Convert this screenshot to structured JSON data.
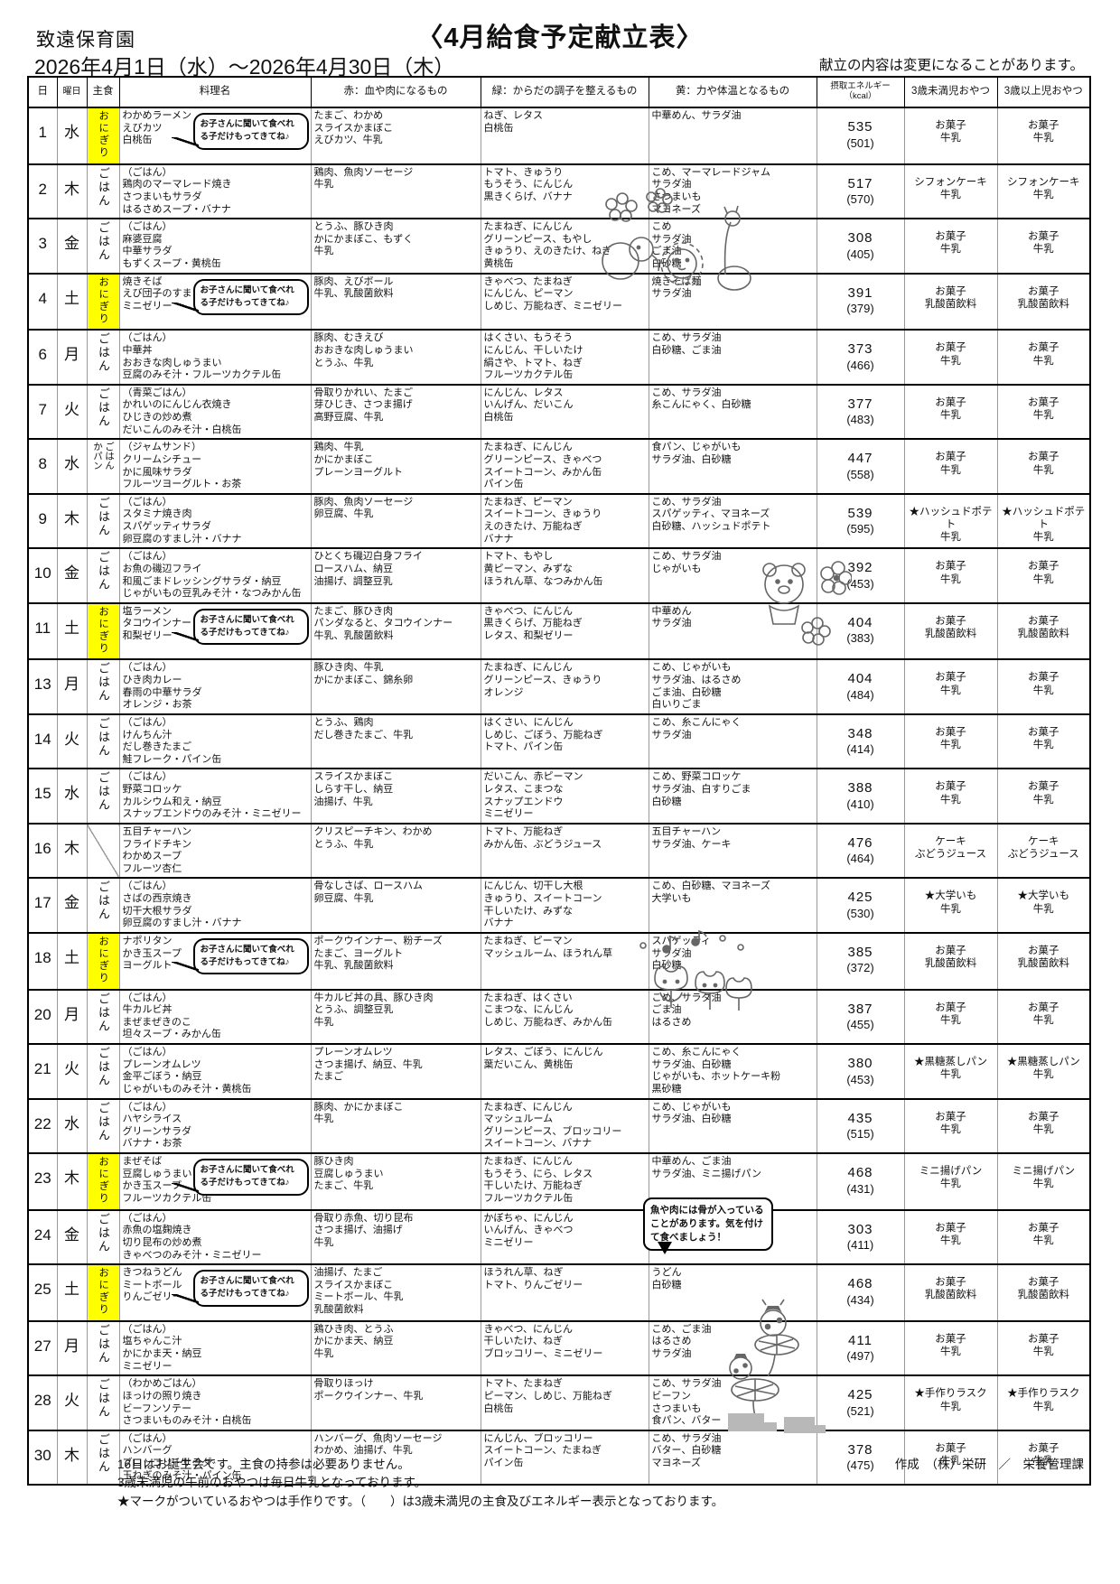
{
  "page": {
    "school": "致遠保育園",
    "title": "〈4月給食予定献立表〉",
    "date_range": "2026年4月1日（水）～2026年4月30日（木）",
    "change_note": "献立の内容は変更になることがあります。"
  },
  "colors": {
    "onigiri_highlight": "#ffff00"
  },
  "bubbles": {
    "bring_note": "お子さんに聞いて食べれる子だけもってきてね♪",
    "bone_note": "魚や肉には骨が入っていることがあります。気を付けて食べましょう！"
  },
  "table": {
    "columns": [
      {
        "key": "day",
        "label": "日"
      },
      {
        "key": "wd",
        "label": "曜日"
      },
      {
        "key": "staple",
        "label": "主食"
      },
      {
        "key": "menu",
        "label": "料理名"
      },
      {
        "key": "red",
        "label": "赤：血や肉になるもの"
      },
      {
        "key": "green",
        "label": "緑：からだの調子を整えるもの"
      },
      {
        "key": "yellow",
        "label": "黄：力や体温となるもの"
      },
      {
        "key": "kcal",
        "label": "摂取エネルギー（kcal）"
      },
      {
        "key": "s1",
        "label": "3歳未満児おやつ"
      },
      {
        "key": "s2",
        "label": "3歳以上児おやつ"
      }
    ],
    "rows": [
      {
        "day": 1,
        "weekday": "水",
        "staple": [
          "おにぎり"
        ],
        "staple_type": "onigiri",
        "bubble": true,
        "menu": [
          "わかめラーメン",
          "えびカツ",
          "白桃缶"
        ],
        "red": [
          "たまご、わかめ",
          "スライスかまぼこ",
          "えびカツ、牛乳"
        ],
        "green": [
          "ねぎ、レタス",
          "白桃缶"
        ],
        "yellow": [
          "中華めん、サラダ油"
        ],
        "kcal": "535",
        "kcal_sub": "(501)",
        "snack_u3": [
          "お菓子",
          "牛乳"
        ],
        "snack_o3": [
          "お菓子",
          "牛乳"
        ]
      },
      {
        "day": 2,
        "weekday": "木",
        "staple": [
          "ごはん"
        ],
        "staple_type": "gohan",
        "bubble": false,
        "menu": [
          "（ごはん）",
          "鶏肉のマーマレード焼き",
          "さつまいもサラダ",
          "はるさめスープ・バナナ"
        ],
        "red": [
          "鶏肉、魚肉ソーセージ",
          "牛乳"
        ],
        "green": [
          "トマト、きゅうり",
          "もうそう、にんじん",
          "黒きくらげ、バナナ"
        ],
        "yellow": [
          "こめ、マーマレードジャム",
          "サラダ油",
          "さつまいも",
          "マヨネーズ"
        ],
        "kcal": "517",
        "kcal_sub": "(570)",
        "snack_u3": [
          "シフォンケーキ",
          "牛乳"
        ],
        "snack_o3": [
          "シフォンケーキ",
          "牛乳"
        ]
      },
      {
        "day": 3,
        "weekday": "金",
        "staple": [
          "ごはん"
        ],
        "staple_type": "gohan",
        "bubble": false,
        "menu": [
          "（ごはん）",
          "麻婆豆腐",
          "中華サラダ",
          "もずくスープ・黄桃缶"
        ],
        "red": [
          "とうふ、豚ひき肉",
          "かにかまぼこ、もずく",
          "牛乳"
        ],
        "green": [
          "たまねぎ、にんじん",
          "グリーンピース、もやし",
          "きゅうり、えのきたけ、ねぎ",
          "黄桃缶"
        ],
        "yellow": [
          "こめ",
          "サラダ油",
          "ごま油",
          "白砂糖"
        ],
        "kcal": "308",
        "kcal_sub": "(405)",
        "snack_u3": [
          "お菓子",
          "牛乳"
        ],
        "snack_o3": [
          "お菓子",
          "牛乳"
        ]
      },
      {
        "day": 4,
        "weekday": "土",
        "staple": [
          "おにぎり"
        ],
        "staple_type": "onigiri",
        "bubble": true,
        "menu": [
          "焼きそば",
          "えび団子のすまし汁",
          "ミニゼリー"
        ],
        "red": [
          "豚肉、えびボール",
          "牛乳、乳酸菌飲料"
        ],
        "green": [
          "きゃべつ、たまねぎ",
          "にんじん、ピーマン",
          "しめじ、万能ねぎ、ミニゼリー"
        ],
        "yellow": [
          "焼きそば麺",
          "サラダ油"
        ],
        "kcal": "391",
        "kcal_sub": "(379)",
        "snack_u3": [
          "お菓子",
          "乳酸菌飲料"
        ],
        "snack_o3": [
          "お菓子",
          "乳酸菌飲料"
        ]
      },
      {
        "day": 6,
        "weekday": "月",
        "staple": [
          "ごはん"
        ],
        "staple_type": "gohan",
        "bubble": false,
        "menu": [
          "（ごはん）",
          "中華丼",
          "おおきな肉しゅうまい",
          "豆腐のみそ汁・フルーツカクテル缶"
        ],
        "red": [
          "豚肉、むきえび",
          "おおきな肉しゅうまい",
          "とうふ、牛乳"
        ],
        "green": [
          "はくさい、もうそう",
          "にんじん、干しいたけ",
          "絹さや、トマト、ねぎ",
          "フルーツカクテル缶"
        ],
        "yellow": [
          "こめ、サラダ油",
          "白砂糖、ごま油"
        ],
        "kcal": "373",
        "kcal_sub": "(466)",
        "snack_u3": [
          "お菓子",
          "牛乳"
        ],
        "snack_o3": [
          "お菓子",
          "牛乳"
        ]
      },
      {
        "day": 7,
        "weekday": "火",
        "staple": [
          "ごはん"
        ],
        "staple_type": "gohan",
        "bubble": false,
        "menu": [
          "（青菜ごはん）",
          "かれいのにんじん衣焼き",
          "ひじきの炒め煮",
          "だいこんのみそ汁・白桃缶"
        ],
        "red": [
          "骨取りかれい、たまご",
          "芽ひじき、さつま揚げ",
          "高野豆腐、牛乳"
        ],
        "green": [
          "にんじん、レタス",
          "いんげん、だいこん",
          "白桃缶"
        ],
        "yellow": [
          "こめ、サラダ油",
          "糸こんにゃく、白砂糖"
        ],
        "kcal": "377",
        "kcal_sub": "(483)",
        "snack_u3": [
          "お菓子",
          "牛乳"
        ],
        "snack_o3": [
          "お菓子",
          "牛乳"
        ]
      },
      {
        "day": 8,
        "weekday": "水",
        "staple": [
          "ごはん",
          "かパン"
        ],
        "staple_type": "gohan_pan",
        "bubble": false,
        "menu": [
          "（ジャムサンド）",
          "クリームシチュー",
          "かに風味サラダ",
          "フルーツヨーグルト・お茶"
        ],
        "red": [
          "鶏肉、牛乳",
          "かにかまぼこ",
          "プレーンヨーグルト"
        ],
        "green": [
          "たまねぎ、にんじん",
          "グリーンピース、きゃべつ",
          "スイートコーン、みかん缶",
          "パイン缶"
        ],
        "yellow": [
          "食パン、じゃがいも",
          "サラダ油、白砂糖"
        ],
        "kcal": "447",
        "kcal_sub": "(558)",
        "snack_u3": [
          "お菓子",
          "牛乳"
        ],
        "snack_o3": [
          "お菓子",
          "牛乳"
        ]
      },
      {
        "day": 9,
        "weekday": "木",
        "staple": [
          "ごはん"
        ],
        "staple_type": "gohan",
        "bubble": false,
        "menu": [
          "（ごはん）",
          "スタミナ焼き肉",
          "スパゲッティサラダ",
          "卵豆腐のすまし汁・バナナ"
        ],
        "red": [
          "豚肉、魚肉ソーセージ",
          "卵豆腐、牛乳"
        ],
        "green": [
          "たまねぎ、ピーマン",
          "スイートコーン、きゅうり",
          "えのきたけ、万能ねぎ",
          "バナナ"
        ],
        "yellow": [
          "こめ、サラダ油",
          "スパゲッティ、マヨネーズ",
          "白砂糖、ハッシュドポテト"
        ],
        "kcal": "539",
        "kcal_sub": "(595)",
        "snack_u3": [
          "★ハッシュドポテト",
          "牛乳"
        ],
        "snack_o3": [
          "★ハッシュドポテト",
          "牛乳"
        ]
      },
      {
        "day": 10,
        "weekday": "金",
        "staple": [
          "ごはん"
        ],
        "staple_type": "gohan",
        "bubble": false,
        "menu": [
          "（ごはん）",
          "お魚の磯辺フライ",
          "和風ごまドレッシングサラダ・納豆",
          "じゃがいもの豆乳みそ汁・なつみかん缶"
        ],
        "red": [
          "ひとくち磯辺白身フライ",
          "ロースハム、納豆",
          "油揚げ、調整豆乳"
        ],
        "green": [
          "トマト、もやし",
          "黄ピーマン、みずな",
          "ほうれん草、なつみかん缶"
        ],
        "yellow": [
          "こめ、サラダ油",
          "じゃがいも"
        ],
        "kcal": "392",
        "kcal_sub": "(453)",
        "snack_u3": [
          "お菓子",
          "牛乳"
        ],
        "snack_o3": [
          "お菓子",
          "牛乳"
        ]
      },
      {
        "day": 11,
        "weekday": "土",
        "staple": [
          "おにぎり"
        ],
        "staple_type": "onigiri",
        "bubble": true,
        "menu": [
          "塩ラーメン",
          "タコウインナー",
          "和梨ゼリー"
        ],
        "red": [
          "たまご、豚ひき肉",
          "パンダなると、タコウインナー",
          "牛乳、乳酸菌飲料"
        ],
        "green": [
          "きゃべつ、にんじん",
          "黒きくらげ、万能ねぎ",
          "レタス、和梨ゼリー"
        ],
        "yellow": [
          "中華めん",
          "サラダ油"
        ],
        "kcal": "404",
        "kcal_sub": "(383)",
        "snack_u3": [
          "お菓子",
          "乳酸菌飲料"
        ],
        "snack_o3": [
          "お菓子",
          "乳酸菌飲料"
        ]
      },
      {
        "day": 13,
        "weekday": "月",
        "staple": [
          "ごはん"
        ],
        "staple_type": "gohan",
        "bubble": false,
        "menu": [
          "（ごはん）",
          "ひき肉カレー",
          "春雨の中華サラダ",
          "オレンジ・お茶"
        ],
        "red": [
          "豚ひき肉、牛乳",
          "かにかまぼこ、錦糸卵"
        ],
        "green": [
          "たまねぎ、にんじん",
          "グリーンピース、きゅうり",
          "オレンジ"
        ],
        "yellow": [
          "こめ、じゃがいも",
          "サラダ油、はるさめ",
          "ごま油、白砂糖",
          "白いりごま"
        ],
        "kcal": "404",
        "kcal_sub": "(484)",
        "snack_u3": [
          "お菓子",
          "牛乳"
        ],
        "snack_o3": [
          "お菓子",
          "牛乳"
        ]
      },
      {
        "day": 14,
        "weekday": "火",
        "staple": [
          "ごはん"
        ],
        "staple_type": "gohan",
        "bubble": false,
        "menu": [
          "（ごはん）",
          "けんちん汁",
          "だし巻きたまご",
          "鮭フレーク・パイン缶"
        ],
        "red": [
          "とうふ、鶏肉",
          "だし巻きたまご、牛乳"
        ],
        "green": [
          "はくさい、にんじん",
          "しめじ、ごぼう、万能ねぎ",
          "トマト、パイン缶"
        ],
        "yellow": [
          "こめ、糸こんにゃく",
          "サラダ油"
        ],
        "kcal": "348",
        "kcal_sub": "(414)",
        "snack_u3": [
          "お菓子",
          "牛乳"
        ],
        "snack_o3": [
          "お菓子",
          "牛乳"
        ]
      },
      {
        "day": 15,
        "weekday": "水",
        "staple": [
          "ごはん"
        ],
        "staple_type": "gohan",
        "bubble": false,
        "menu": [
          "（ごはん）",
          "野菜コロッケ",
          "カルシウム和え・納豆",
          "スナップエンドウのみそ汁・ミニゼリー"
        ],
        "red": [
          "スライスかまぼこ",
          "しらす干し、納豆",
          "油揚げ、牛乳"
        ],
        "green": [
          "だいこん、赤ピーマン",
          "レタス、こまつな",
          "スナップエンドウ",
          "ミニゼリー"
        ],
        "yellow": [
          "こめ、野菜コロッケ",
          "サラダ油、白すりごま",
          "白砂糖"
        ],
        "kcal": "388",
        "kcal_sub": "(410)",
        "snack_u3": [
          "お菓子",
          "牛乳"
        ],
        "snack_o3": [
          "お菓子",
          "牛乳"
        ]
      },
      {
        "day": 16,
        "weekday": "木",
        "staple": [],
        "staple_type": "none",
        "bubble": false,
        "menu": [
          "五目チャーハン",
          "フライドチキン",
          "わかめスープ",
          "フルーツ杏仁"
        ],
        "red": [
          "クリスピーチキン、わかめ",
          "とうふ、牛乳"
        ],
        "green": [
          "トマト、万能ねぎ",
          "みかん缶、ぶどうジュース"
        ],
        "yellow": [
          "五目チャーハン",
          "サラダ油、ケーキ"
        ],
        "kcal": "476",
        "kcal_sub": "(464)",
        "snack_u3": [
          "ケーキ",
          "ぶどうジュース"
        ],
        "snack_o3": [
          "ケーキ",
          "ぶどうジュース"
        ]
      },
      {
        "day": 17,
        "weekday": "金",
        "staple": [
          "ごはん"
        ],
        "staple_type": "gohan",
        "bubble": false,
        "menu": [
          "（ごはん）",
          "さばの西京焼き",
          "切干大根サラダ",
          "卵豆腐のすまし汁・バナナ"
        ],
        "red": [
          "骨なしさば、ロースハム",
          "卵豆腐、牛乳"
        ],
        "green": [
          "にんじん、切干し大根",
          "きゅうり、スイートコーン",
          "干しいたけ、みずな",
          "バナナ"
        ],
        "yellow": [
          "こめ、白砂糖、マヨネーズ",
          "大学いも"
        ],
        "kcal": "425",
        "kcal_sub": "(530)",
        "snack_u3": [
          "★大学いも",
          "牛乳"
        ],
        "snack_o3": [
          "★大学いも",
          "牛乳"
        ]
      },
      {
        "day": 18,
        "weekday": "土",
        "staple": [
          "おにぎり"
        ],
        "staple_type": "onigiri",
        "bubble": true,
        "menu": [
          "ナポリタン",
          "かき玉スープ",
          "ヨーグルト"
        ],
        "red": [
          "ポークウインナー、粉チーズ",
          "たまご、ヨーグルト",
          "牛乳、乳酸菌飲料"
        ],
        "green": [
          "たまねぎ、ピーマン",
          "マッシュルーム、ほうれん草"
        ],
        "yellow": [
          "スパゲッティ",
          "サラダ油",
          "白砂糖"
        ],
        "kcal": "385",
        "kcal_sub": "(372)",
        "snack_u3": [
          "お菓子",
          "乳酸菌飲料"
        ],
        "snack_o3": [
          "お菓子",
          "乳酸菌飲料"
        ]
      },
      {
        "day": 20,
        "weekday": "月",
        "staple": [
          "ごはん"
        ],
        "staple_type": "gohan",
        "bubble": false,
        "menu": [
          "（ごはん）",
          "牛カルビ丼",
          "まぜまぜきのこ",
          "坦々スープ・みかん缶"
        ],
        "red": [
          "牛カルビ丼の具、豚ひき肉",
          "とうふ、調整豆乳",
          "牛乳"
        ],
        "green": [
          "たまねぎ、はくさい",
          "こまつな、にんじん",
          "しめじ、万能ねぎ、みかん缶"
        ],
        "yellow": [
          "こめ、サラダ油",
          "ごま油",
          "はるさめ"
        ],
        "kcal": "387",
        "kcal_sub": "(455)",
        "snack_u3": [
          "お菓子",
          "牛乳"
        ],
        "snack_o3": [
          "お菓子",
          "牛乳"
        ]
      },
      {
        "day": 21,
        "weekday": "火",
        "staple": [
          "ごはん"
        ],
        "staple_type": "gohan",
        "bubble": false,
        "menu": [
          "（ごはん）",
          "プレーンオムレツ",
          "金平ごぼう・納豆",
          "じゃがいものみそ汁・黄桃缶"
        ],
        "red": [
          "プレーンオムレツ",
          "さつま揚げ、納豆、牛乳",
          "たまご"
        ],
        "green": [
          "レタス、ごぼう、にんじん",
          "葉だいこん、黄桃缶"
        ],
        "yellow": [
          "こめ、糸こんにゃく",
          "サラダ油、白砂糖",
          "じゃがいも、ホットケーキ粉",
          "黒砂糖"
        ],
        "kcal": "380",
        "kcal_sub": "(453)",
        "snack_u3": [
          "★黒糖蒸しパン",
          "牛乳"
        ],
        "snack_o3": [
          "★黒糖蒸しパン",
          "牛乳"
        ]
      },
      {
        "day": 22,
        "weekday": "水",
        "staple": [
          "ごはん"
        ],
        "staple_type": "gohan",
        "bubble": false,
        "menu": [
          "（ごはん）",
          "ハヤシライス",
          "グリーンサラダ",
          "バナナ・お茶"
        ],
        "red": [
          "豚肉、かにかまぼこ",
          "牛乳"
        ],
        "green": [
          "たまねぎ、にんじん",
          "マッシュルーム",
          "グリーンピース、ブロッコリー",
          "スイートコーン、バナナ"
        ],
        "yellow": [
          "こめ、じゃがいも",
          "サラダ油、白砂糖"
        ],
        "kcal": "435",
        "kcal_sub": "(515)",
        "snack_u3": [
          "お菓子",
          "牛乳"
        ],
        "snack_o3": [
          "お菓子",
          "牛乳"
        ]
      },
      {
        "day": 23,
        "weekday": "木",
        "staple": [
          "おにぎり"
        ],
        "staple_type": "onigiri",
        "bubble": true,
        "menu": [
          "まぜそば",
          "豆腐しゅうまい",
          "かき玉スープ",
          "フルーツカクテル缶"
        ],
        "red": [
          "豚ひき肉",
          "豆腐しゅうまい",
          "たまご、牛乳"
        ],
        "green": [
          "たまねぎ、にんじん",
          "もうそう、にら、レタス",
          "干しいたけ、万能ねぎ",
          "フルーツカクテル缶"
        ],
        "yellow": [
          "中華めん、ごま油",
          "サラダ油、ミニ揚げパン"
        ],
        "kcal": "468",
        "kcal_sub": "(431)",
        "snack_u3": [
          "ミニ揚げパン",
          "牛乳"
        ],
        "snack_o3": [
          "ミニ揚げパン",
          "牛乳"
        ]
      },
      {
        "day": 24,
        "weekday": "金",
        "staple": [
          "ごはん"
        ],
        "staple_type": "gohan",
        "bubble": false,
        "menu": [
          "（ごはん）",
          "赤魚の塩麹焼き",
          "切り昆布の炒め煮",
          "きゃべつのみそ汁・ミニゼリー"
        ],
        "red": [
          "骨取り赤魚、切り昆布",
          "さつま揚げ、油揚げ",
          "牛乳"
        ],
        "green": [
          "かぼちゃ、にんじん",
          "いんげん、きゃべつ",
          "ミニゼリー"
        ],
        "yellow": [
          "こめ、サラダ油",
          "白砂糖",
          "糸こんにゃく"
        ],
        "kcal": "303",
        "kcal_sub": "(411)",
        "snack_u3": [
          "お菓子",
          "牛乳"
        ],
        "snack_o3": [
          "お菓子",
          "牛乳"
        ]
      },
      {
        "day": 25,
        "weekday": "土",
        "staple": [
          "おにぎり"
        ],
        "staple_type": "onigiri",
        "bubble": true,
        "menu": [
          "きつねうどん",
          "ミートボール",
          "りんごゼリー"
        ],
        "red": [
          "油揚げ、たまご",
          "スライスかまぼこ",
          "ミートボール、牛乳",
          "乳酸菌飲料"
        ],
        "green": [
          "ほうれん草、ねぎ",
          "トマト、りんごゼリー"
        ],
        "yellow": [
          "うどん",
          "白砂糖"
        ],
        "kcal": "468",
        "kcal_sub": "(434)",
        "snack_u3": [
          "お菓子",
          "乳酸菌飲料"
        ],
        "snack_o3": [
          "お菓子",
          "乳酸菌飲料"
        ]
      },
      {
        "day": 27,
        "weekday": "月",
        "staple": [
          "ごはん"
        ],
        "staple_type": "gohan",
        "bubble": false,
        "menu": [
          "（ごはん）",
          "塩ちゃんこ汁",
          "かにかま天・納豆",
          "ミニゼリー"
        ],
        "red": [
          "鶏ひき肉、とうふ",
          "かにかま天、納豆",
          "牛乳"
        ],
        "green": [
          "きゃべつ、にんじん",
          "干しいたけ、ねぎ",
          "ブロッコリー、ミニゼリー"
        ],
        "yellow": [
          "こめ、ごま油",
          "はるさめ",
          "サラダ油"
        ],
        "kcal": "411",
        "kcal_sub": "(497)",
        "snack_u3": [
          "お菓子",
          "牛乳"
        ],
        "snack_o3": [
          "お菓子",
          "牛乳"
        ]
      },
      {
        "day": 28,
        "weekday": "火",
        "staple": [
          "ごはん"
        ],
        "staple_type": "gohan",
        "bubble": false,
        "menu": [
          "（わかめごはん）",
          "ほっけの照り焼き",
          "ビーフンソテー",
          "さつまいものみそ汁・白桃缶"
        ],
        "red": [
          "骨取りほっけ",
          "ポークウインナー、牛乳"
        ],
        "green": [
          "トマト、たまねぎ",
          "ピーマン、しめじ、万能ねぎ",
          "白桃缶"
        ],
        "yellow": [
          "こめ、サラダ油",
          "ビーフン",
          "さつまいも",
          "食パン、バター"
        ],
        "kcal": "425",
        "kcal_sub": "(521)",
        "snack_u3": [
          "★手作りラスク",
          "牛乳"
        ],
        "snack_o3": [
          "★手作りラスク",
          "牛乳"
        ]
      },
      {
        "day": 30,
        "weekday": "木",
        "staple": [
          "ごはん"
        ],
        "staple_type": "gohan",
        "bubble": false,
        "menu": [
          "（ごはん）",
          "ハンバーグ",
          "ブロッコリーサラダ",
          "玉ねぎのみそ汁・パイン缶"
        ],
        "red": [
          "ハンバーグ、魚肉ソーセージ",
          "わかめ、油揚げ、牛乳"
        ],
        "green": [
          "にんじん、ブロッコリー",
          "スイートコーン、たまねぎ",
          "パイン缶"
        ],
        "yellow": [
          "こめ、サラダ油",
          "バター、白砂糖",
          "マヨネーズ"
        ],
        "kcal": "378",
        "kcal_sub": "(475)",
        "snack_u3": [
          "お菓子",
          "牛乳"
        ],
        "snack_o3": [
          "お菓子",
          "牛乳"
        ]
      }
    ]
  },
  "footer": {
    "notes": [
      "16日はお誕生会です。主食の持参は必要ありません。",
      "3歳未満児の午前のおやつは毎日牛乳となっております。",
      "★マークがついているおやつは手作りです。（　　）は3歳未満児の主食及びエネルギー表示となっております。"
    ],
    "credit": "作成　（株）栄研　／　栄養管理課"
  },
  "decorations": [
    "animal-parade",
    "bear-with-sakura",
    "tulips-and-notes",
    "ladybugs-on-dandelions"
  ]
}
